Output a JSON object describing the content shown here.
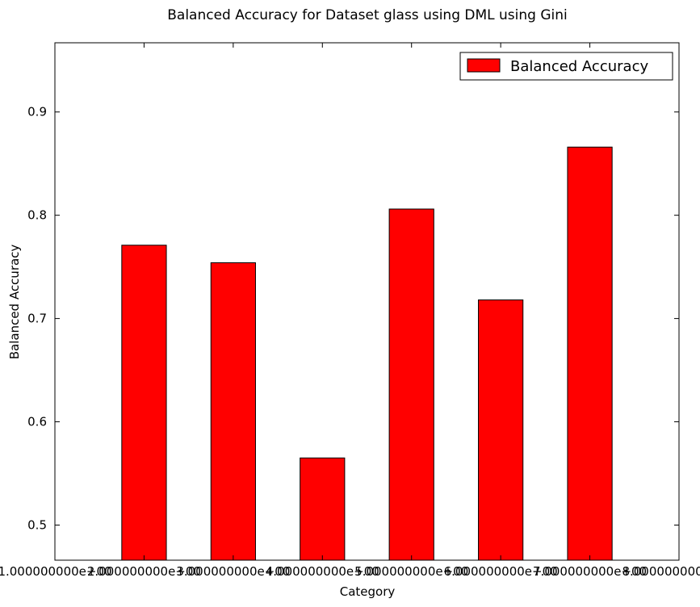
{
  "chart_data": {
    "type": "bar",
    "title": "Balanced Accuracy for Dataset glass using DML using Gini",
    "xlabel": "Category",
    "ylabel": "Balanced Accuracy",
    "x_tick_labels": [
      "1.000000000e+00",
      "2.000000000e+00",
      "3.000000000e+00",
      "4.000000000e+00",
      "5.000000000e+00",
      "6.000000000e+00",
      "7.000000000e+00",
      "8.000000000e+00"
    ],
    "categories": [
      "2.000000000e+00",
      "3.000000000e+00",
      "4.000000000e+00",
      "5.000000000e+00",
      "6.000000000e+00",
      "7.000000000e+00"
    ],
    "values": [
      0.771,
      0.754,
      0.565,
      0.806,
      0.718,
      0.866
    ],
    "legend": {
      "label": "Balanced Accuracy",
      "position": "top-right"
    },
    "ylim": [
      0.466,
      0.967
    ],
    "yticks": [
      0.5,
      0.6,
      0.7,
      0.8,
      0.9
    ],
    "xlim": [
      1,
      8
    ],
    "grid": false,
    "colors": {
      "bar": "#ff0000",
      "edge": "#000000"
    }
  }
}
